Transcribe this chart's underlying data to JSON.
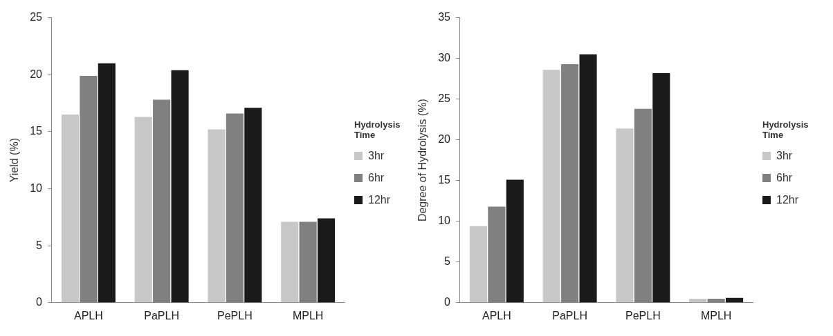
{
  "chart_data": [
    {
      "type": "bar",
      "ylabel": "Yield (%)",
      "legend_title": "Hydrolysis Time",
      "categories": [
        "APLH",
        "PaPLH",
        "PePLH",
        "MPLH"
      ],
      "series": [
        {
          "name": "3hr",
          "color": "#c8c8c8",
          "values": [
            16.5,
            16.3,
            15.2,
            7.1
          ]
        },
        {
          "name": "6hr",
          "color": "#808080",
          "values": [
            19.9,
            17.8,
            16.6,
            7.1
          ]
        },
        {
          "name": "12hr",
          "color": "#1a1a1a",
          "values": [
            21.0,
            20.4,
            17.1,
            7.4
          ]
        }
      ],
      "ylim": [
        0,
        25
      ],
      "yticks": [
        0,
        5,
        10,
        15,
        20,
        25
      ],
      "grid": false,
      "legend": "right"
    },
    {
      "type": "bar",
      "ylabel": "Degree of Hydrolysis (%)",
      "legend_title": "Hydrolysis Time",
      "categories": [
        "APLH",
        "PaPLH",
        "PePLH",
        "MPLH"
      ],
      "series": [
        {
          "name": "3hr",
          "color": "#c8c8c8",
          "values": [
            9.4,
            28.6,
            21.4,
            0.5
          ]
        },
        {
          "name": "6hr",
          "color": "#808080",
          "values": [
            11.8,
            29.3,
            23.8,
            0.5
          ]
        },
        {
          "name": "12hr",
          "color": "#1a1a1a",
          "values": [
            15.1,
            30.5,
            28.2,
            0.6
          ]
        }
      ],
      "ylim": [
        0,
        35
      ],
      "yticks": [
        0,
        5,
        10,
        15,
        20,
        25,
        30,
        35
      ],
      "grid": false,
      "legend": "right"
    }
  ]
}
